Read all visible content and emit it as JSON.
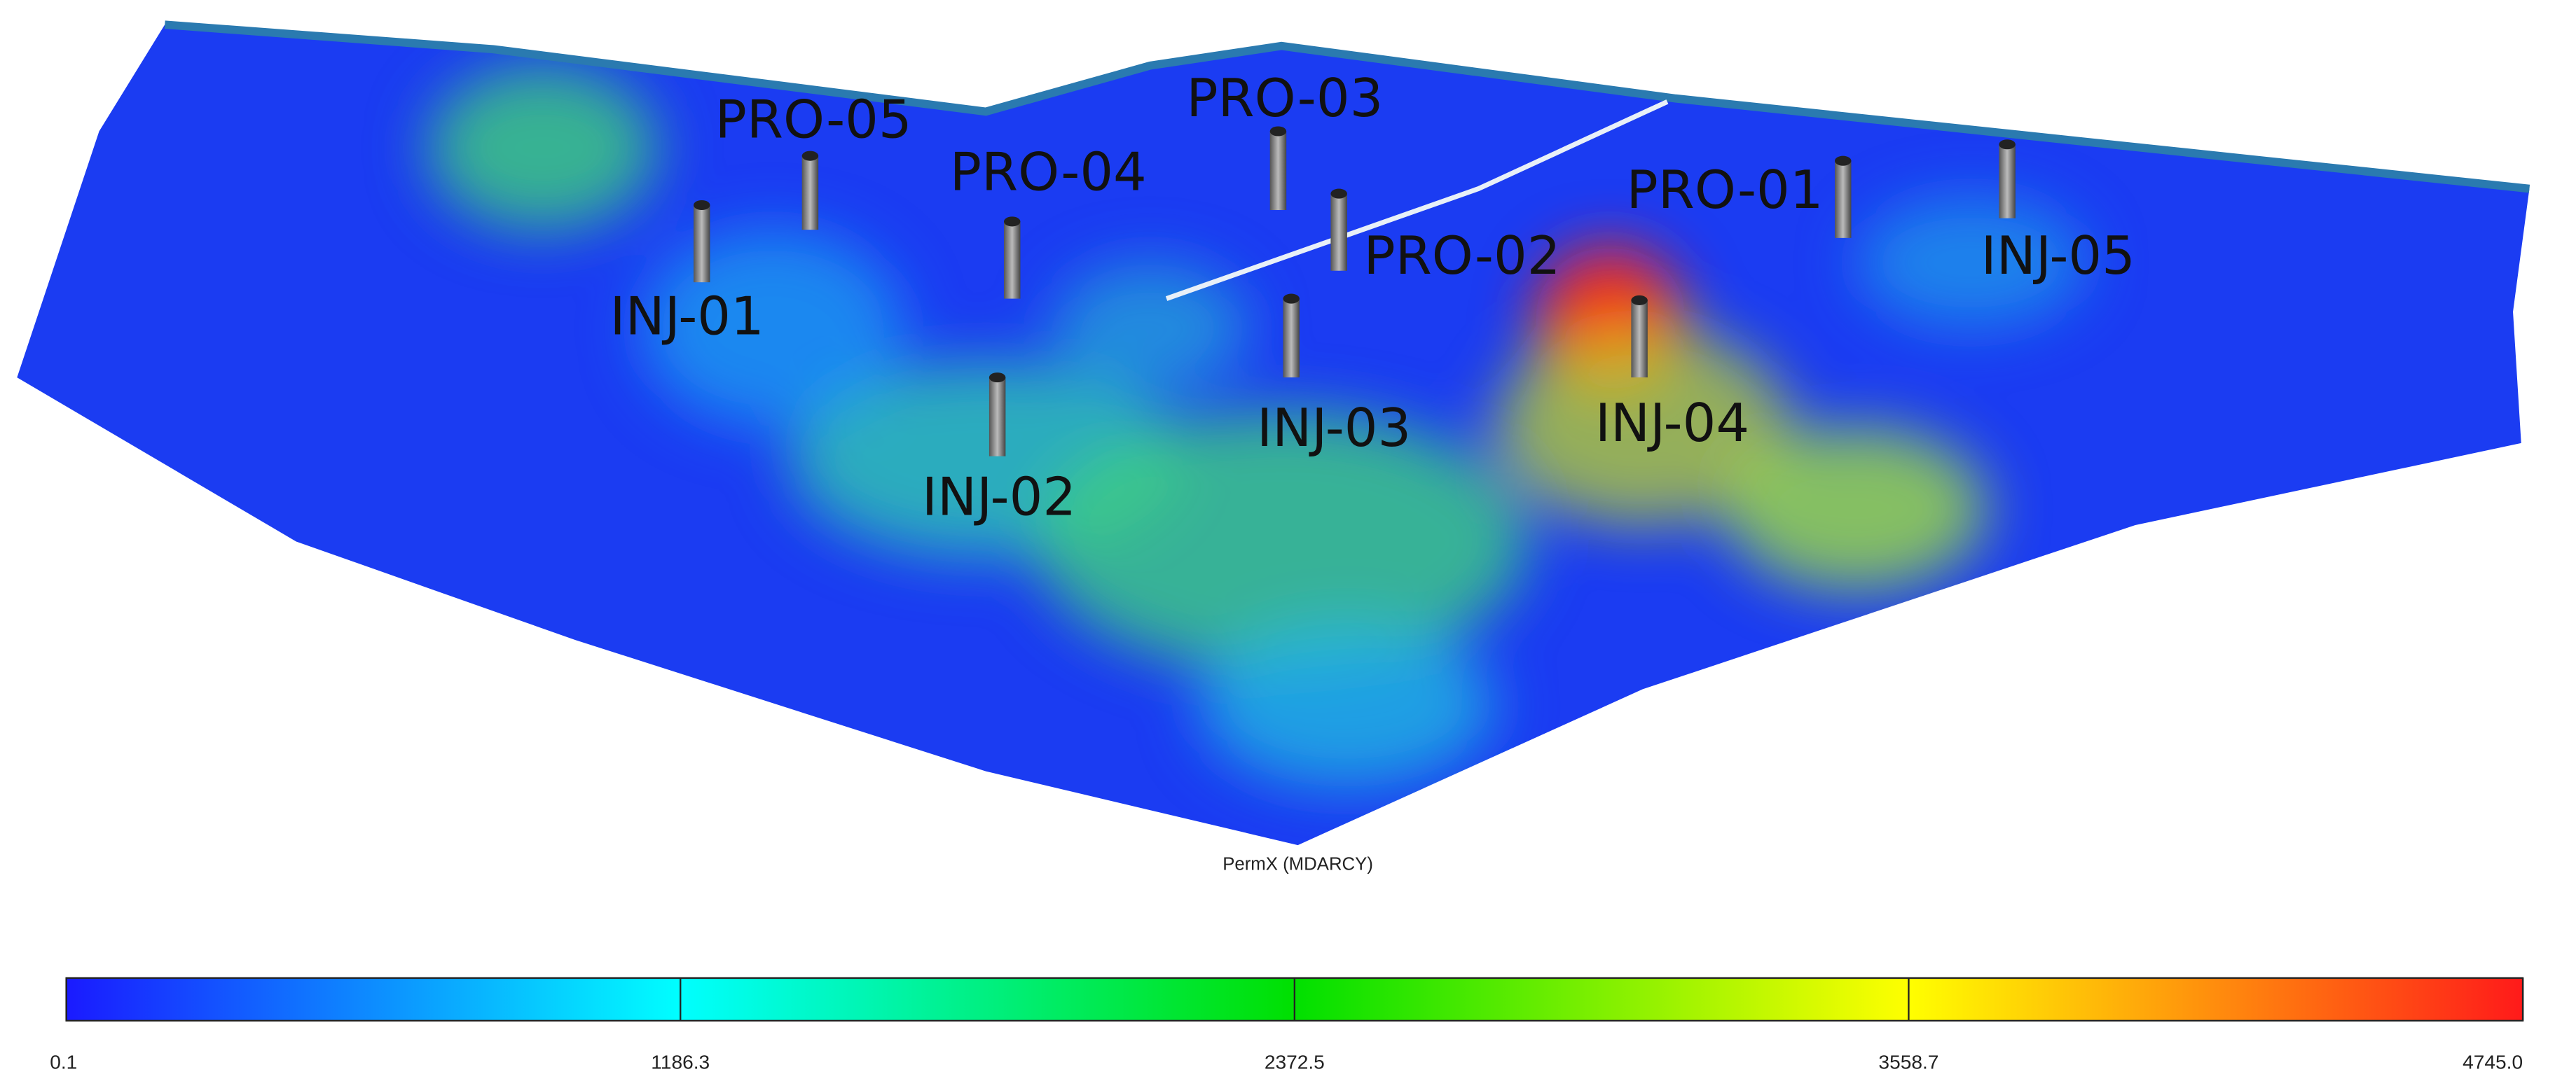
{
  "wells": [
    {
      "label": "PRO-05"
    },
    {
      "label": "PRO-04"
    },
    {
      "label": "PRO-03"
    },
    {
      "label": "PRO-02"
    },
    {
      "label": "PRO-01"
    },
    {
      "label": "INJ-05"
    },
    {
      "label": "INJ-01"
    },
    {
      "label": "INJ-02"
    },
    {
      "label": "INJ-03"
    },
    {
      "label": "INJ-04"
    }
  ],
  "colorbar": {
    "title": "PermX (MDARCY)",
    "range": [
      0.1,
      4745
    ],
    "ticks": [
      0.1,
      1186.3,
      2372.5,
      3558.7,
      {
        "value": 4745,
        "label": "4745.0"
      }
    ],
    "colors": [
      "#1a1aff",
      "#00ffff",
      "#00e000",
      "#ffff00",
      "#ff1a1a"
    ]
  }
}
